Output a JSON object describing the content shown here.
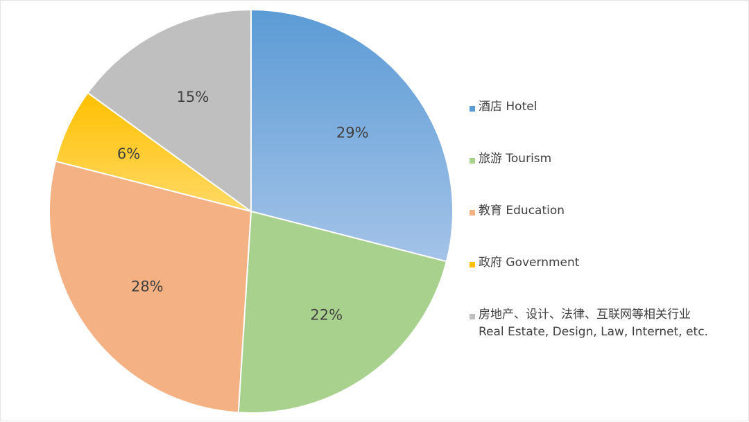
{
  "chart_data": {
    "type": "pie",
    "start_angle_deg": 90,
    "direction": "clockwise",
    "legend_position": "right",
    "slices": [
      {
        "label": "29%",
        "value": 29,
        "legend": [
          "酒店 Hotel"
        ],
        "color": "#5b9bd5",
        "color_light": "#a4c3e8"
      },
      {
        "label": "22%",
        "value": 22,
        "legend": [
          "旅游 Tourism"
        ],
        "color": "#a9d18e",
        "color_light": "#a9d18e"
      },
      {
        "label": "28%",
        "value": 28,
        "legend": [
          "教育 Education"
        ],
        "color": "#f4b183",
        "color_light": "#f4b183"
      },
      {
        "label": "6%",
        "value": 6,
        "legend": [
          "政府 Government"
        ],
        "color": "#ffc000",
        "color_light": "#ffd966"
      },
      {
        "label": "15%",
        "value": 15,
        "legend": [
          "房地产、设计、法律、互联网等相关行业",
          "Real Estate, Design, Law, Internet, etc."
        ],
        "color": "#bfbfbf",
        "color_light": "#bfbfbf"
      }
    ]
  }
}
